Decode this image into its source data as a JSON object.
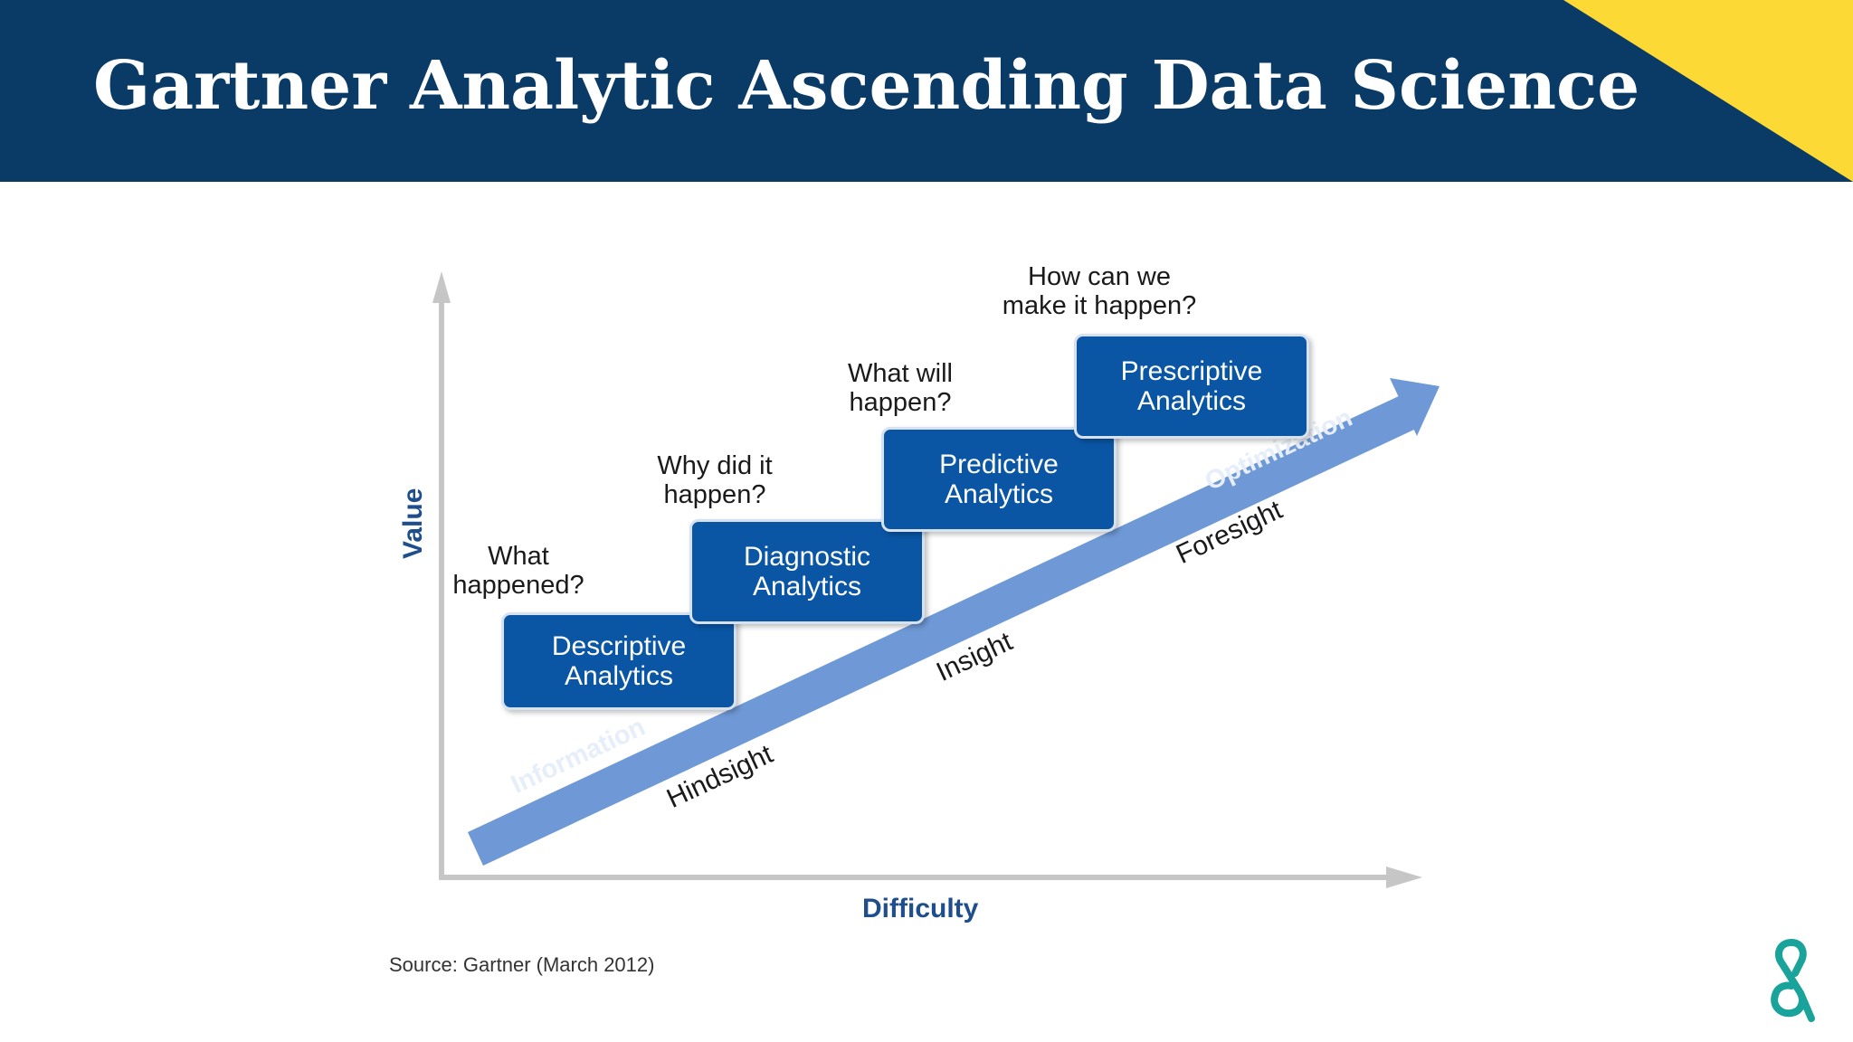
{
  "header": {
    "title": "Gartner Analytic Ascending Data Science",
    "bar_color": "#0a3a66",
    "accent_color": "#fcd935"
  },
  "diagram": {
    "y_axis_label": "Value",
    "x_axis_label": "Difficulty",
    "arrow_labels": {
      "start": "Information",
      "end": "Optimization"
    },
    "sight_labels": [
      "Hindsight",
      "Insight",
      "Foresight"
    ],
    "stages": [
      {
        "line1": "Descriptive",
        "line2": "Analytics",
        "question_line1": "What",
        "question_line2": "happened?"
      },
      {
        "line1": "Diagnostic",
        "line2": "Analytics",
        "question_line1": "Why did it",
        "question_line2": "happen?"
      },
      {
        "line1": "Predictive",
        "line2": "Analytics",
        "question_line1": "What will",
        "question_line2": "happen?"
      },
      {
        "line1": "Prescriptive",
        "line2": "Analytics",
        "question_line1": "How can we",
        "question_line2": "make it happen?"
      }
    ],
    "box_color": "#0a56a5",
    "arrow_color": "#6f99d6"
  },
  "source": "Source: Gartner (March 2012)",
  "logo": {
    "icon": "brand-logo-icon",
    "color": "#1aa39a"
  }
}
